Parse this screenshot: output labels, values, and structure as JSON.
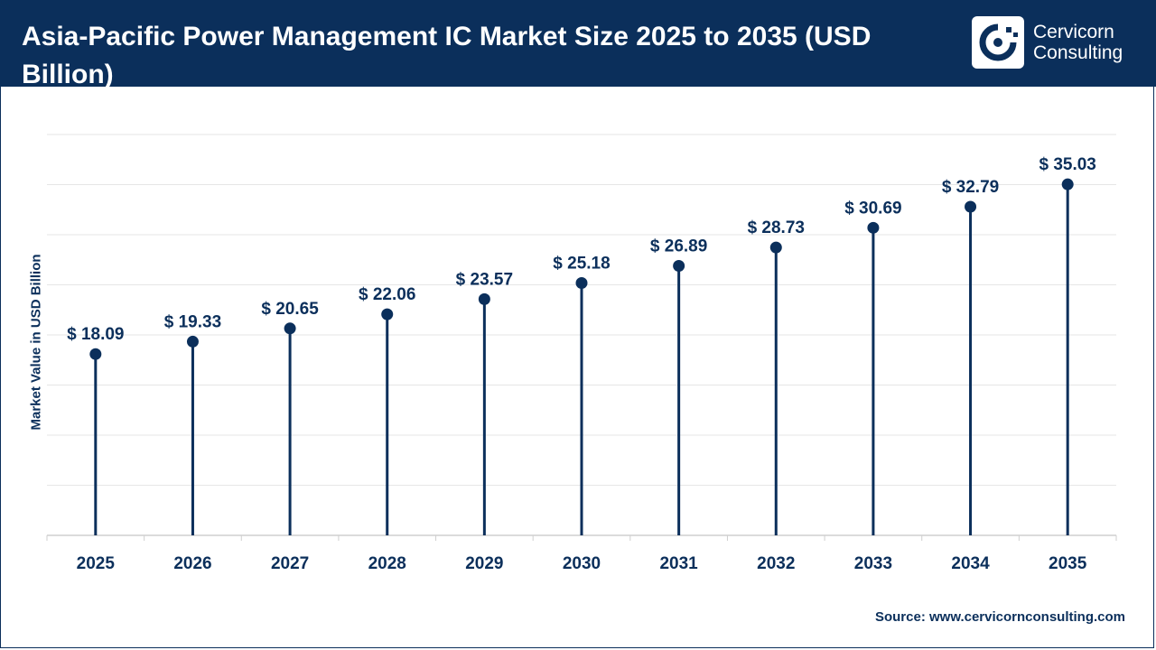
{
  "header": {
    "title": "Asia-Pacific Power Management IC Market Size 2025 to 2035 (USD Billion)",
    "logo_line1": "Cervicorn",
    "logo_line2": "Consulting"
  },
  "source": {
    "label": "Source:",
    "url": "www.cervicornconsulting.com"
  },
  "colors": {
    "primary": "#0b2f5b",
    "grid": "#e6e6e6",
    "axis": "#cfcfcf"
  },
  "chart_data": {
    "type": "lollipop",
    "title": "Asia-Pacific Power Management IC Market Size 2025 to 2035 (USD Billion)",
    "xlabel": "",
    "ylabel": "Market Value in USD Billion",
    "categories": [
      "2025",
      "2026",
      "2027",
      "2028",
      "2029",
      "2030",
      "2031",
      "2032",
      "2033",
      "2034",
      "2035"
    ],
    "values": [
      18.09,
      19.33,
      20.65,
      22.06,
      23.57,
      25.18,
      26.89,
      28.73,
      30.69,
      32.79,
      35.03
    ],
    "data_labels": [
      "$ 18.09",
      "$ 19.33",
      "$ 20.65",
      "$ 22.06",
      "$ 23.57",
      "$ 25.18",
      "$ 26.89",
      "$ 28.73",
      "$ 30.69",
      "$ 32.79",
      "$ 35.03"
    ],
    "ylim": [
      0,
      40
    ],
    "grid": true,
    "legend": "none"
  }
}
